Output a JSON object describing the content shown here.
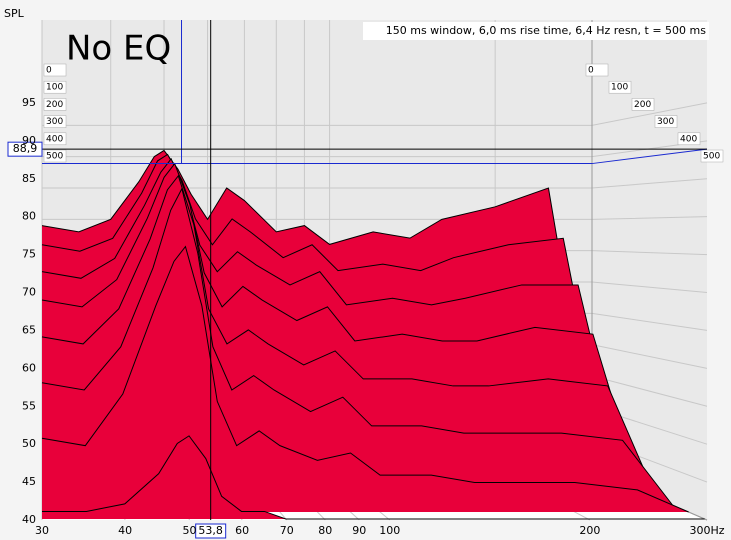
{
  "chart_data": {
    "type": "waterfall",
    "title": "No EQ",
    "subtitle": "150 ms window, 6,0 ms rise time,  6,4 Hz resn, t = 500 ms",
    "y_label": "SPL",
    "color": "#e8003a",
    "x": [
      30,
      35,
      40,
      45,
      48,
      50,
      53,
      56,
      60,
      65,
      70,
      80,
      90,
      100,
      120,
      140,
      160,
      200,
      250,
      300
    ],
    "series": [
      {
        "t": 0,
        "values": [
          79,
          78,
          80,
          86,
          90,
          91,
          88,
          84,
          80,
          85,
          83,
          78,
          79,
          76,
          78,
          77,
          80,
          82,
          85,
          44
        ]
      },
      {
        "t": 70,
        "values": [
          76,
          75,
          77,
          84,
          89,
          90,
          86,
          80,
          76,
          80,
          78,
          74,
          76,
          72,
          73,
          72,
          74,
          76,
          77,
          42
        ]
      },
      {
        "t": 140,
        "values": [
          72,
          71,
          74,
          82,
          87,
          89,
          84,
          76,
          72,
          75,
          73,
          70,
          72,
          67,
          68,
          67,
          68,
          70,
          70,
          41
        ]
      },
      {
        "t": 210,
        "values": [
          68,
          67,
          71,
          80,
          86,
          88,
          82,
          72,
          67,
          70,
          68,
          65,
          67,
          62,
          63,
          62,
          62,
          64,
          63,
          40
        ]
      },
      {
        "t": 280,
        "values": [
          63,
          62,
          67,
          77,
          84,
          86,
          79,
          67,
          62,
          64,
          62,
          59,
          61,
          57,
          57,
          56,
          56,
          57,
          56,
          40
        ]
      },
      {
        "t": 350,
        "values": [
          57,
          56,
          62,
          73,
          81,
          84,
          75,
          62,
          56,
          58,
          56,
          53,
          55,
          51,
          51,
          50,
          50,
          50,
          49,
          40
        ]
      },
      {
        "t": 420,
        "values": [
          50,
          49,
          56,
          68,
          74,
          76,
          68,
          55,
          49,
          51,
          49,
          47,
          48,
          45,
          45,
          44,
          44,
          44,
          43,
          40
        ]
      },
      {
        "t": 490,
        "values": [
          41,
          41,
          42,
          46,
          50,
          51,
          48,
          43,
          41,
          41,
          40,
          40,
          40,
          40,
          40,
          40,
          40,
          40,
          40,
          40
        ]
      }
    ],
    "xlim": [
      30,
      300
    ],
    "log_x": true,
    "xticks": [
      30,
      40,
      50,
      60,
      70,
      80,
      90,
      100,
      200,
      {
        "value": 300,
        "label": "300Hz"
      }
    ],
    "ylim": [
      40,
      100
    ],
    "yticks": [
      40,
      45,
      50,
      55,
      60,
      65,
      70,
      75,
      80,
      85,
      90,
      95
    ],
    "zlim": [
      0,
      500
    ],
    "zticks": [
      0,
      100,
      200,
      300,
      400,
      500
    ],
    "grid": true,
    "cursor": {
      "x": {
        "value": 53.8,
        "label": "53,8"
      },
      "y": {
        "value": 88.9,
        "label": "88,9"
      }
    }
  }
}
